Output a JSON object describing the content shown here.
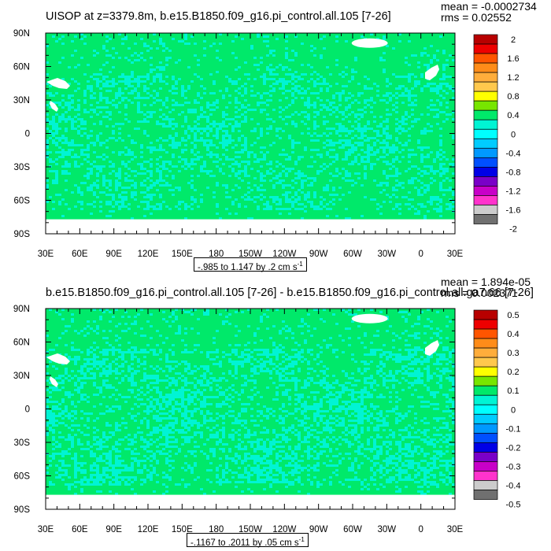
{
  "panels": [
    {
      "title": "UISOP at z=3379.8m, b.e15.B1850.f09_g16.pi_control.all.105 [7-26]",
      "mean": "mean = -0.0002734",
      "rms": "rms = 0.02552",
      "range_text": "-.985 to 1.147 by .2 cm s",
      "range_sup": "-1"
    },
    {
      "title": "b.e15.B1850.f09_g16.pi_control.all.105 [7-26] - b.e15.B1850.f09_g16.pi_control.all.ga7.66 [7-26]",
      "mean": "mean = 1.894e-05",
      "rms": "rms = 0.002371",
      "range_text": "-.1167 to .2011 by .05 cm s",
      "range_sup": "-1"
    }
  ],
  "colors": {
    "land": "#ffffff",
    "ocean_main": "#00e96a",
    "ocean_alt": "#00f4d4",
    "frame": "#000000"
  },
  "chart_data": [
    {
      "type": "heatmap",
      "title": "UISOP at z=3379.8m, b.e15.B1850.f09_g16.pi_control.all.105 [7-26]",
      "xlabel": "",
      "ylabel": "",
      "x_ticks": [
        "30E",
        "60E",
        "90E",
        "120E",
        "150E",
        "180",
        "150W",
        "120W",
        "90W",
        "60W",
        "30W",
        "0",
        "30E"
      ],
      "y_ticks": [
        "90N",
        "60N",
        "30N",
        "0",
        "30S",
        "60S",
        "90S"
      ],
      "xlim": [
        30,
        390
      ],
      "ylim": [
        -90,
        90
      ],
      "colorbar": {
        "labels": [
          "2",
          "1.6",
          "1.2",
          "0.8",
          "0.4",
          "0",
          "-0.4",
          "-0.8",
          "-1.2",
          "-1.6",
          "-2"
        ],
        "colors": [
          "#b80000",
          "#ee0000",
          "#ff5500",
          "#ff8c19",
          "#ffad3b",
          "#ffc84d",
          "#ffff00",
          "#77e600",
          "#00e96a",
          "#00f4d4",
          "#00ffff",
          "#00ccff",
          "#0099ff",
          "#0050ff",
          "#0000e6",
          "#7a00c8",
          "#c800c8",
          "#ff33cc",
          "#cccccc",
          "#707070"
        ]
      },
      "dominant_values": {
        "main": "-0.2 to 0",
        "alt": "-0.4 to -0.2"
      },
      "mean": -0.0002734,
      "rms": 0.02552,
      "contour_range": "-.985 to 1.147 by .2 cm s-1"
    },
    {
      "type": "heatmap",
      "title": "b.e15.B1850.f09_g16.pi_control.all.105 [7-26] - b.e15.B1850.f09_g16.pi_control.all.ga7.66 [7-26]",
      "xlabel": "",
      "ylabel": "",
      "x_ticks": [
        "30E",
        "60E",
        "90E",
        "120E",
        "150E",
        "180",
        "150W",
        "120W",
        "90W",
        "60W",
        "30W",
        "0",
        "30E"
      ],
      "y_ticks": [
        "90N",
        "60N",
        "30N",
        "0",
        "30S",
        "60S",
        "90S"
      ],
      "xlim": [
        30,
        390
      ],
      "ylim": [
        -90,
        90
      ],
      "colorbar": {
        "labels": [
          "0.5",
          "0.4",
          "0.3",
          "0.2",
          "0.1",
          "0",
          "-0.1",
          "-0.2",
          "-0.3",
          "-0.4",
          "-0.5"
        ],
        "colors": [
          "#b80000",
          "#ee0000",
          "#ff5500",
          "#ff8c19",
          "#ffad3b",
          "#ffc84d",
          "#ffff00",
          "#77e600",
          "#00e96a",
          "#00f4d4",
          "#00ffff",
          "#00ccff",
          "#0099ff",
          "#0050ff",
          "#0000e6",
          "#7a00c8",
          "#c800c8",
          "#ff33cc",
          "#cccccc",
          "#707070"
        ]
      },
      "dominant_values": {
        "main": "-0.05 to 0",
        "alt": "-0.1 to -0.05"
      },
      "mean": 1.894e-05,
      "rms": 0.002371,
      "contour_range": "-.1167 to .2011 by .05 cm s-1"
    }
  ]
}
